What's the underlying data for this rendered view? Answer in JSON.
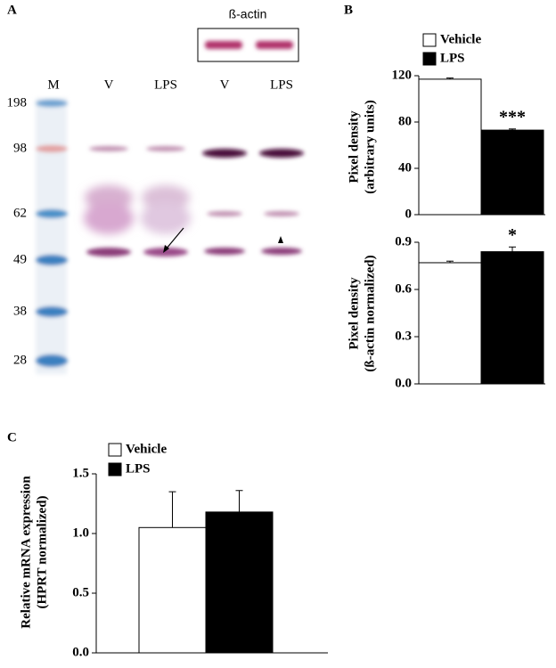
{
  "panel_labels": [
    "A",
    "B",
    "C"
  ],
  "gel": {
    "inset_title": "ß-actin",
    "lanes": [
      "M",
      "V",
      "LPS",
      "V",
      "LPS"
    ],
    "markers": [
      198,
      98,
      62,
      49,
      38,
      28
    ]
  },
  "chart_data": [
    {
      "type": "bar",
      "ylabel": [
        "Pixel density",
        "(arbitrary units)"
      ],
      "legend": true,
      "series": [
        {
          "name": "Vehicle",
          "color": "#ffffff",
          "values": [
            117
          ],
          "errors": [
            1
          ]
        },
        {
          "name": "LPS",
          "color": "#000000",
          "values": [
            73
          ],
          "errors": [
            1
          ]
        }
      ],
      "annotation": "***",
      "ylim": [
        0,
        120
      ],
      "yticks": [
        0,
        40,
        80,
        120
      ]
    },
    {
      "type": "bar",
      "ylabel": [
        "Pixel density",
        "(ß-actin normalized)"
      ],
      "legend": false,
      "series": [
        {
          "name": "Vehicle",
          "color": "#ffffff",
          "values": [
            0.77
          ],
          "errors": [
            0.01
          ]
        },
        {
          "name": "LPS",
          "color": "#000000",
          "values": [
            0.84
          ],
          "errors": [
            0.03
          ]
        }
      ],
      "annotation": "*",
      "ylim": [
        0,
        0.9
      ],
      "yticks": [
        {
          "value": 0,
          "label": "0.0"
        },
        0.3,
        0.6,
        0.9
      ]
    },
    {
      "type": "bar",
      "ylabel": [
        "Relative mRNA expression",
        "(HPRT normalized)"
      ],
      "legend": true,
      "series": [
        {
          "name": "Vehicle",
          "color": "#ffffff",
          "values": [
            1.05
          ],
          "errors": [
            0.3
          ]
        },
        {
          "name": "LPS",
          "color": "#000000",
          "values": [
            1.18
          ],
          "errors": [
            0.18
          ]
        }
      ],
      "ylim": [
        0,
        1.5
      ],
      "yticks": [
        {
          "value": 0,
          "label": "0.0"
        },
        0.5,
        {
          "value": 1,
          "label": "1.0"
        },
        1.5
      ]
    }
  ]
}
